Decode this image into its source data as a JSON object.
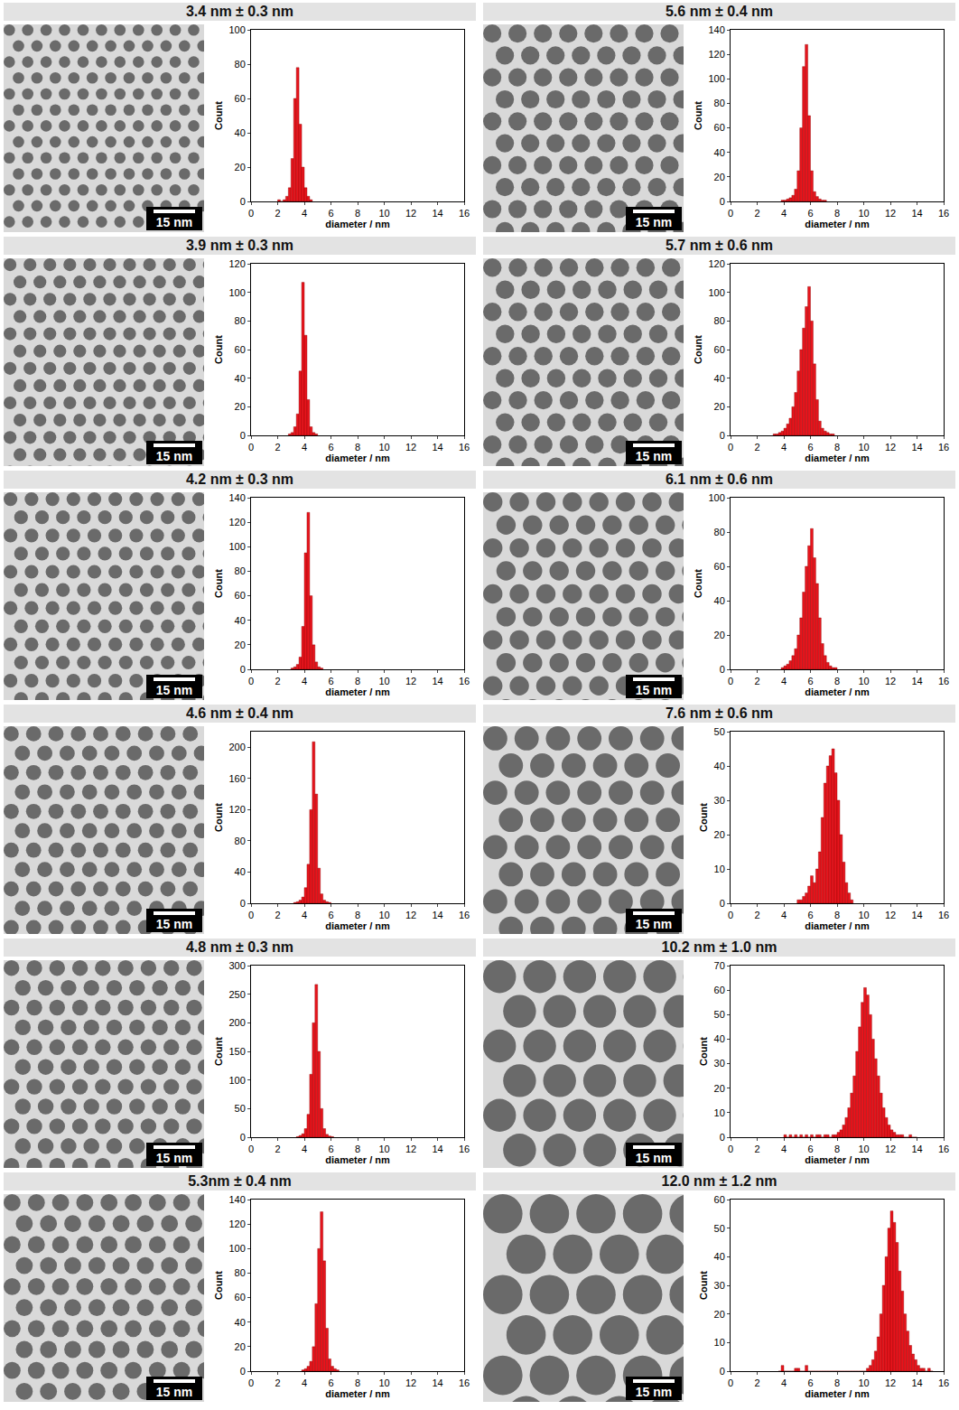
{
  "chart_data": [
    {
      "type": "histogram",
      "title": "3.4 nm ± 0.3 nm",
      "scale_bar": "15 nm",
      "x_label": "diameter / nm",
      "y_label": "Count",
      "color": "#e8141c",
      "grid": false,
      "bins": [
        2.0,
        2.2,
        2.4,
        2.6,
        2.8,
        3.0,
        3.2,
        3.4,
        3.6,
        3.8,
        4.0,
        4.2,
        4.4,
        4.6
      ],
      "counts": [
        1,
        0,
        1,
        3,
        8,
        25,
        60,
        78,
        45,
        20,
        8,
        3,
        1
      ],
      "xlim": [
        0,
        16
      ],
      "xticks": [
        0,
        2,
        4,
        6,
        8,
        10,
        12,
        14,
        16
      ],
      "ylim": [
        0,
        100
      ],
      "yticks": [
        0,
        20,
        40,
        60,
        80,
        100
      ]
    },
    {
      "type": "histogram",
      "title": "3.9 nm ± 0.3 nm",
      "scale_bar": "15 nm",
      "x_label": "diameter / nm",
      "y_label": "Count",
      "color": "#e8141c",
      "grid": false,
      "bins": [
        2.8,
        3.0,
        3.2,
        3.4,
        3.6,
        3.8,
        4.0,
        4.2,
        4.4,
        4.6,
        4.8,
        5.0
      ],
      "counts": [
        1,
        2,
        6,
        15,
        45,
        107,
        70,
        25,
        6,
        2,
        1
      ],
      "xlim": [
        0,
        16
      ],
      "xticks": [
        0,
        2,
        4,
        6,
        8,
        10,
        12,
        14,
        16
      ],
      "ylim": [
        0,
        120
      ],
      "yticks": [
        0,
        20,
        40,
        60,
        80,
        100,
        120
      ]
    },
    {
      "type": "histogram",
      "title": "4.2 nm ± 0.3 nm",
      "scale_bar": "15 nm",
      "x_label": "diameter / nm",
      "y_label": "Count",
      "color": "#e8141c",
      "grid": false,
      "bins": [
        3.0,
        3.2,
        3.4,
        3.6,
        3.8,
        4.0,
        4.2,
        4.4,
        4.6,
        4.8,
        5.0,
        5.2,
        5.4
      ],
      "counts": [
        1,
        2,
        4,
        10,
        35,
        95,
        128,
        60,
        20,
        6,
        2,
        1
      ],
      "xlim": [
        0,
        16
      ],
      "xticks": [
        0,
        2,
        4,
        6,
        8,
        10,
        12,
        14,
        16
      ],
      "ylim": [
        0,
        140
      ],
      "yticks": [
        0,
        20,
        40,
        60,
        80,
        100,
        120,
        140
      ]
    },
    {
      "type": "histogram",
      "title": "4.6 nm ± 0.4 nm",
      "scale_bar": "15 nm",
      "x_label": "diameter / nm",
      "y_label": "Count",
      "color": "#e8141c",
      "grid": false,
      "bins": [
        3.2,
        3.4,
        3.6,
        3.8,
        4.0,
        4.2,
        4.4,
        4.6,
        4.8,
        5.0,
        5.2,
        5.4,
        5.6,
        5.8,
        6.0
      ],
      "counts": [
        1,
        2,
        4,
        8,
        20,
        50,
        120,
        207,
        140,
        45,
        12,
        4,
        2,
        1
      ],
      "xlim": [
        0,
        16
      ],
      "xticks": [
        0,
        2,
        4,
        6,
        8,
        10,
        12,
        14,
        16
      ],
      "ylim": [
        0,
        220
      ],
      "yticks": [
        0,
        40,
        80,
        120,
        160,
        200
      ]
    },
    {
      "type": "histogram",
      "title": "4.8 nm ± 0.3 nm",
      "scale_bar": "15 nm",
      "x_label": "diameter / nm",
      "y_label": "Count",
      "color": "#e8141c",
      "grid": false,
      "bins": [
        3.4,
        3.6,
        3.8,
        4.0,
        4.2,
        4.4,
        4.6,
        4.8,
        5.0,
        5.2,
        5.4,
        5.6,
        5.8,
        6.0,
        6.2
      ],
      "counts": [
        1,
        3,
        6,
        15,
        40,
        110,
        200,
        267,
        150,
        50,
        15,
        5,
        2,
        1
      ],
      "xlim": [
        0,
        16
      ],
      "xticks": [
        0,
        2,
        4,
        6,
        8,
        10,
        12,
        14,
        16
      ],
      "ylim": [
        0,
        300
      ],
      "yticks": [
        0,
        50,
        100,
        150,
        200,
        250,
        300
      ]
    },
    {
      "type": "histogram",
      "title": "5.3nm ± 0.4 nm",
      "scale_bar": "15 nm",
      "x_label": "diameter / nm",
      "y_label": "Count",
      "color": "#e8141c",
      "grid": false,
      "bins": [
        3.8,
        4.0,
        4.2,
        4.4,
        4.6,
        4.8,
        5.0,
        5.2,
        5.4,
        5.6,
        5.8,
        6.0,
        6.2,
        6.4,
        6.6
      ],
      "counts": [
        1,
        2,
        4,
        8,
        20,
        55,
        100,
        130,
        90,
        35,
        10,
        4,
        2,
        1
      ],
      "xlim": [
        0,
        16
      ],
      "xticks": [
        0,
        2,
        4,
        6,
        8,
        10,
        12,
        14,
        16
      ],
      "ylim": [
        0,
        140
      ],
      "yticks": [
        0,
        20,
        40,
        60,
        80,
        100,
        120,
        140
      ]
    },
    {
      "type": "histogram",
      "title": "5.6 nm ± 0.4 nm",
      "scale_bar": "15 nm",
      "x_label": "diameter / nm",
      "y_label": "Count",
      "color": "#e8141c",
      "grid": false,
      "bins": [
        3.8,
        4.0,
        4.2,
        4.4,
        4.6,
        4.8,
        5.0,
        5.2,
        5.4,
        5.6,
        5.8,
        6.0,
        6.2,
        6.4,
        6.6,
        6.8,
        7.0,
        7.2
      ],
      "counts": [
        1,
        1,
        2,
        3,
        5,
        10,
        25,
        60,
        110,
        128,
        70,
        25,
        8,
        4,
        2,
        1,
        1
      ],
      "xlim": [
        0,
        16
      ],
      "xticks": [
        0,
        2,
        4,
        6,
        8,
        10,
        12,
        14,
        16
      ],
      "ylim": [
        0,
        140
      ],
      "yticks": [
        0,
        20,
        40,
        60,
        80,
        100,
        120,
        140
      ]
    },
    {
      "type": "histogram",
      "title": "5.7 nm ± 0.6 nm",
      "scale_bar": "15 nm",
      "x_label": "diameter / nm",
      "y_label": "Count",
      "color": "#e8141c",
      "grid": false,
      "bins": [
        3.2,
        3.4,
        3.6,
        3.8,
        4.0,
        4.2,
        4.4,
        4.6,
        4.8,
        5.0,
        5.2,
        5.4,
        5.6,
        5.8,
        6.0,
        6.2,
        6.4,
        6.6,
        6.8,
        7.0,
        7.2,
        7.4,
        7.6,
        7.8
      ],
      "counts": [
        1,
        1,
        2,
        3,
        5,
        8,
        12,
        20,
        30,
        45,
        60,
        75,
        90,
        104,
        80,
        50,
        25,
        10,
        5,
        3,
        2,
        1,
        1
      ],
      "xlim": [
        0,
        16
      ],
      "xticks": [
        0,
        2,
        4,
        6,
        8,
        10,
        12,
        14,
        16
      ],
      "ylim": [
        0,
        120
      ],
      "yticks": [
        0,
        20,
        40,
        60,
        80,
        100,
        120
      ]
    },
    {
      "type": "histogram",
      "title": "6.1 nm ± 0.6 nm",
      "scale_bar": "15 nm",
      "x_label": "diameter / nm",
      "y_label": "Count",
      "color": "#e8141c",
      "grid": false,
      "bins": [
        3.8,
        4.0,
        4.2,
        4.4,
        4.6,
        4.8,
        5.0,
        5.2,
        5.4,
        5.6,
        5.8,
        6.0,
        6.2,
        6.4,
        6.6,
        6.8,
        7.0,
        7.2,
        7.4,
        7.6,
        7.8,
        8.0
      ],
      "counts": [
        1,
        2,
        3,
        5,
        8,
        12,
        20,
        30,
        45,
        60,
        72,
        82,
        65,
        50,
        30,
        15,
        8,
        4,
        2,
        1,
        1
      ],
      "xlim": [
        0,
        16
      ],
      "xticks": [
        0,
        2,
        4,
        6,
        8,
        10,
        12,
        14,
        16
      ],
      "ylim": [
        0,
        100
      ],
      "yticks": [
        0,
        20,
        40,
        60,
        80,
        100
      ]
    },
    {
      "type": "histogram",
      "title": "7.6 nm ± 0.6 nm",
      "scale_bar": "15 nm",
      "x_label": "diameter / nm",
      "y_label": "Count",
      "color": "#e8141c",
      "grid": false,
      "bins": [
        5.0,
        5.2,
        5.4,
        5.6,
        5.8,
        6.0,
        6.2,
        6.4,
        6.6,
        6.8,
        7.0,
        7.2,
        7.4,
        7.6,
        7.8,
        8.0,
        8.2,
        8.4,
        8.6,
        8.8,
        9.0,
        9.2
      ],
      "counts": [
        1,
        1,
        2,
        3,
        5,
        8,
        6,
        10,
        15,
        25,
        35,
        40,
        43,
        45,
        38,
        30,
        20,
        12,
        6,
        3,
        1
      ],
      "xlim": [
        0,
        16
      ],
      "xticks": [
        0,
        2,
        4,
        6,
        8,
        10,
        12,
        14,
        16
      ],
      "ylim": [
        0,
        50
      ],
      "yticks": [
        0,
        10,
        20,
        30,
        40,
        50
      ]
    },
    {
      "type": "histogram",
      "title": "10.2 nm ± 1.0 nm",
      "scale_bar": "15 nm",
      "x_label": "diameter / nm",
      "y_label": "Count",
      "color": "#e8141c",
      "grid": false,
      "bins": [
        4.0,
        4.2,
        4.4,
        4.6,
        4.8,
        5.0,
        5.2,
        5.4,
        5.6,
        5.8,
        6.0,
        6.2,
        6.4,
        6.6,
        6.8,
        7.0,
        7.2,
        7.4,
        7.6,
        7.8,
        8.0,
        8.2,
        8.4,
        8.6,
        8.8,
        9.0,
        9.2,
        9.4,
        9.6,
        9.8,
        10.0,
        10.2,
        10.4,
        10.6,
        10.8,
        11.0,
        11.2,
        11.4,
        11.6,
        11.8,
        12.0,
        12.2,
        12.4,
        12.6,
        12.8,
        13.0,
        13.2,
        13.4,
        13.6,
        13.8,
        14.0
      ],
      "counts": [
        1,
        0,
        1,
        0,
        1,
        0,
        1,
        0,
        1,
        0,
        1,
        0,
        1,
        1,
        0,
        1,
        1,
        0,
        1,
        1,
        2,
        3,
        5,
        8,
        12,
        18,
        25,
        35,
        45,
        55,
        61,
        58,
        50,
        40,
        32,
        25,
        18,
        12,
        8,
        5,
        3,
        2,
        1,
        1,
        1,
        0,
        0,
        1,
        0,
        0
      ],
      "xlim": [
        0,
        16
      ],
      "xticks": [
        0,
        2,
        4,
        6,
        8,
        10,
        12,
        14,
        16
      ],
      "ylim": [
        0,
        70
      ],
      "yticks": [
        0,
        10,
        20,
        30,
        40,
        50,
        60,
        70
      ]
    },
    {
      "type": "histogram",
      "title": "12.0 nm ± 1.2 nm",
      "scale_bar": "15 nm",
      "x_label": "diameter / nm",
      "y_label": "Count",
      "color": "#e8141c",
      "grid": false,
      "bins": [
        3.6,
        3.8,
        4.0,
        4.2,
        4.4,
        4.6,
        4.8,
        5.0,
        5.2,
        5.4,
        5.6,
        5.8,
        6.0,
        6.2,
        6.4,
        6.6,
        6.8,
        7.0,
        7.2,
        7.4,
        7.6,
        7.8,
        8.0,
        8.2,
        8.4,
        8.6,
        8.8,
        9.0,
        9.2,
        9.4,
        9.6,
        9.8,
        10.0,
        10.2,
        10.4,
        10.6,
        10.8,
        11.0,
        11.2,
        11.4,
        11.6,
        11.8,
        12.0,
        12.2,
        12.4,
        12.6,
        12.8,
        13.0,
        13.2,
        13.4,
        13.6,
        13.8,
        14.0,
        14.2,
        14.4,
        14.6,
        14.8,
        15.0,
        15.2
      ],
      "counts": [
        0,
        2,
        0,
        0,
        0,
        0,
        1,
        1,
        0,
        0,
        2,
        0,
        0,
        0,
        0,
        0,
        0,
        0,
        0,
        0,
        0,
        0,
        0,
        0,
        0,
        0,
        0,
        0,
        0,
        0,
        0,
        0,
        0,
        1,
        2,
        4,
        7,
        12,
        20,
        30,
        40,
        50,
        56,
        52,
        45,
        35,
        28,
        20,
        14,
        9,
        6,
        4,
        2,
        1,
        1,
        0,
        1,
        0
      ],
      "xlim": [
        0,
        16
      ],
      "xticks": [
        0,
        2,
        4,
        6,
        8,
        10,
        12,
        14,
        16
      ],
      "ylim": [
        0,
        60
      ],
      "yticks": [
        0,
        10,
        20,
        30,
        40,
        50,
        60
      ]
    }
  ]
}
